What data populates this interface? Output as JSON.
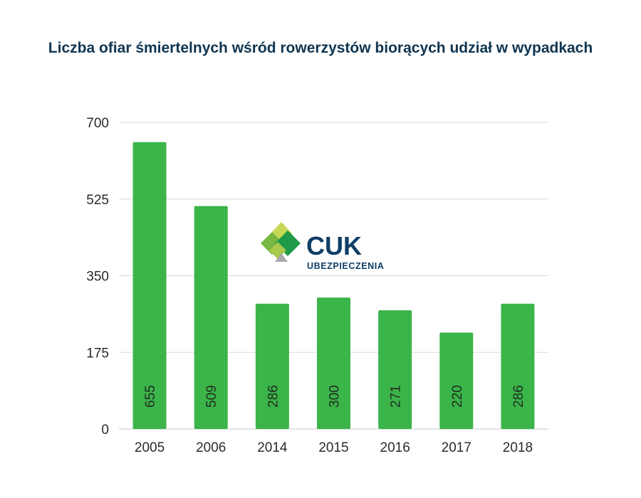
{
  "chart_data": {
    "type": "bar",
    "title": "Liczba ofiar śmiertelnych wśród rowerzystów biorących udział w wypadkach",
    "xlabel": "",
    "ylabel": "",
    "categories": [
      "2005",
      "2006",
      "2014",
      "2015",
      "2016",
      "2017",
      "2018"
    ],
    "values": [
      655,
      509,
      286,
      300,
      271,
      220,
      286
    ],
    "ylim": [
      0,
      700
    ],
    "yticks": [
      0,
      175,
      350,
      525,
      700
    ],
    "grid": true,
    "legend": "none",
    "bar_color": "#3bb44a",
    "data_labels": "inside-bottom-rotated"
  },
  "logo": {
    "name": "CUK",
    "tagline": "UBEZPIECZENIA",
    "icon": "cuk-diamond-logo-icon",
    "text_color": "#0f3e66"
  },
  "colors": {
    "title": "#0f3551",
    "grid": "#d9d9d9",
    "axis": "#c8c8c8"
  }
}
